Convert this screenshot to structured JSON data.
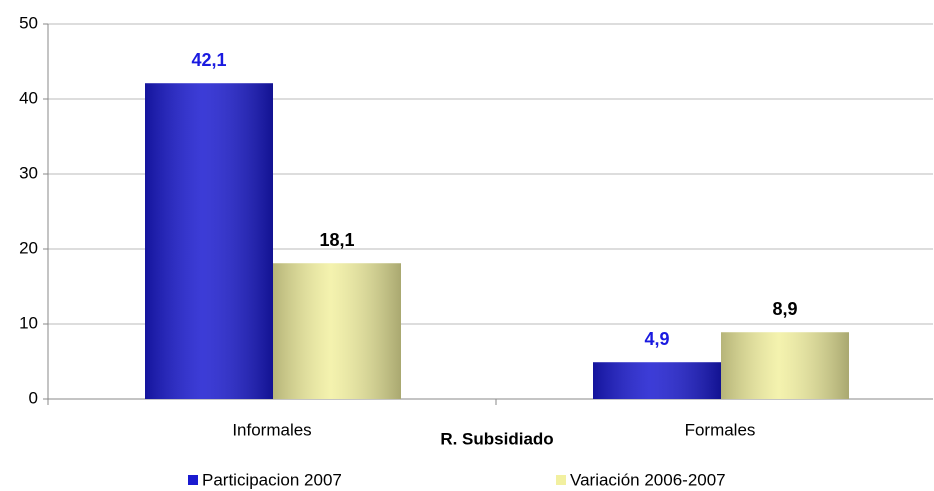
{
  "chart_data": {
    "type": "bar",
    "x_label": "R. Subsidiado",
    "categories": [
      "Informales",
      "Formales"
    ],
    "series": [
      {
        "name": "Participacion 2007",
        "color": "#1a1ad0",
        "label_color": "#1a1ae0",
        "values": [
          42.1,
          4.9
        ],
        "value_labels": [
          "42,1",
          "4,9"
        ]
      },
      {
        "name": "Variación 2006-2007",
        "color": "#f2f0a0",
        "label_color": "#000000",
        "values": [
          18.1,
          8.9
        ],
        "value_labels": [
          "18,1",
          "8,9"
        ]
      }
    ],
    "ylim": [
      0,
      50
    ],
    "yticks": [
      0,
      10,
      20,
      30,
      40,
      50
    ],
    "grid": true
  }
}
